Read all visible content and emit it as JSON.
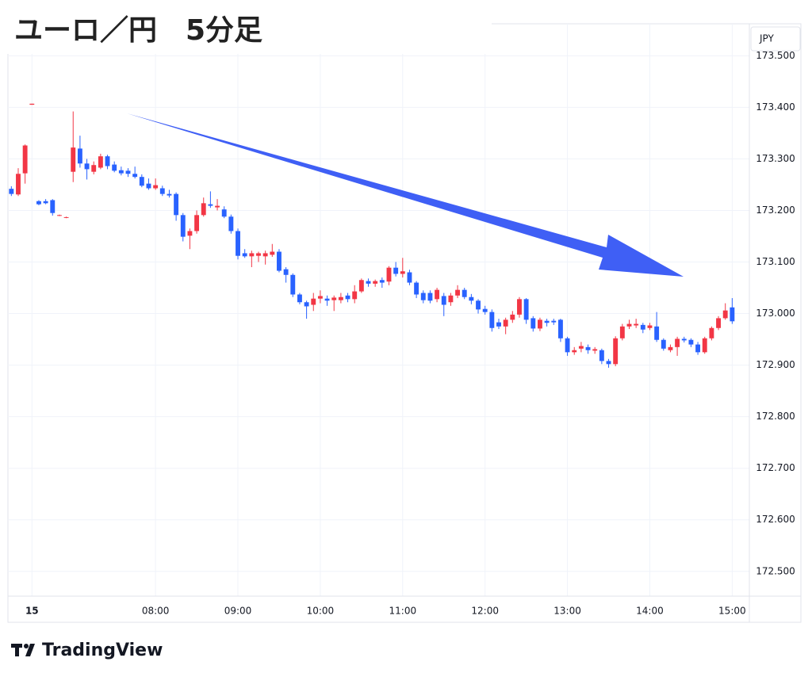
{
  "chart_data": {
    "type": "candlestick",
    "title": "ユーロ／円　5分足",
    "currency": "JPY",
    "watermark": "TradingView",
    "up_color": "#f23645",
    "down_color": "#2962ff",
    "grid": true,
    "ylim": [
      172.452,
      173.562
    ],
    "yticks": [
      {
        "value": 173.5,
        "label": "173.500"
      },
      {
        "value": 173.4,
        "label": "173.400"
      },
      {
        "value": 173.3,
        "label": "173.300"
      },
      {
        "value": 173.2,
        "label": "173.200"
      },
      {
        "value": 173.1,
        "label": "173.100"
      },
      {
        "value": 173.0,
        "label": "173.000"
      },
      {
        "value": 172.9,
        "label": "172.900"
      },
      {
        "value": 172.8,
        "label": "172.800"
      },
      {
        "value": 172.7,
        "label": "172.700"
      },
      {
        "value": 172.6,
        "label": "172.600"
      },
      {
        "value": 172.5,
        "label": "172.500"
      }
    ],
    "xlim": [
      -0.5,
      107.5
    ],
    "xticks": [
      {
        "value": 3,
        "label": "15"
      },
      {
        "value": 21,
        "label": "08:00"
      },
      {
        "value": 33,
        "label": "09:00"
      },
      {
        "value": 45,
        "label": "10:00"
      },
      {
        "value": 57,
        "label": "11:00"
      },
      {
        "value": 69,
        "label": "12:00"
      },
      {
        "value": 81,
        "label": "13:00"
      },
      {
        "value": 93,
        "label": "14:00"
      },
      {
        "value": 105,
        "label": "15:00"
      }
    ],
    "ohlc": [
      [
        173.242,
        173.247,
        173.228,
        173.232
      ],
      [
        173.231,
        173.282,
        173.228,
        173.271
      ],
      [
        173.272,
        173.328,
        173.252,
        173.326
      ],
      [
        173.405,
        173.407,
        173.405,
        173.407
      ],
      [
        173.218,
        173.22,
        173.21,
        173.212
      ],
      [
        173.218,
        173.222,
        173.212,
        173.214
      ],
      [
        173.22,
        173.222,
        173.19,
        173.195
      ],
      [
        173.19,
        173.192,
        173.189,
        173.191
      ],
      [
        173.186,
        173.188,
        173.185,
        173.187
      ],
      [
        173.275,
        173.392,
        173.255,
        173.322
      ],
      [
        173.32,
        173.345,
        173.283,
        173.291
      ],
      [
        173.291,
        173.3,
        173.26,
        173.28
      ],
      [
        173.275,
        173.295,
        173.27,
        173.288
      ],
      [
        173.283,
        173.31,
        173.28,
        173.305
      ],
      [
        173.305,
        173.308,
        173.28,
        173.286
      ],
      [
        173.289,
        173.295,
        173.274,
        173.277
      ],
      [
        173.278,
        173.285,
        173.268,
        173.272
      ],
      [
        173.277,
        173.282,
        173.265,
        173.271
      ],
      [
        173.271,
        173.285,
        173.262,
        173.265
      ],
      [
        173.265,
        173.27,
        173.245,
        173.248
      ],
      [
        173.252,
        173.262,
        173.24,
        173.243
      ],
      [
        173.243,
        173.262,
        173.24,
        173.249
      ],
      [
        173.243,
        173.248,
        173.228,
        173.232
      ],
      [
        173.232,
        173.24,
        173.225,
        173.229
      ],
      [
        173.232,
        173.235,
        173.18,
        173.191
      ],
      [
        173.191,
        173.195,
        173.14,
        173.149
      ],
      [
        173.151,
        173.165,
        173.125,
        173.16
      ],
      [
        173.16,
        173.2,
        173.155,
        173.191
      ],
      [
        173.191,
        173.225,
        173.188,
        173.214
      ],
      [
        173.212,
        173.237,
        173.205,
        173.209
      ],
      [
        173.206,
        173.222,
        173.2,
        173.209
      ],
      [
        173.202,
        173.208,
        173.185,
        173.188
      ],
      [
        173.188,
        173.192,
        173.155,
        173.16
      ],
      [
        173.16,
        173.165,
        173.105,
        173.112
      ],
      [
        173.117,
        173.125,
        173.108,
        173.111
      ],
      [
        173.111,
        173.122,
        173.09,
        173.117
      ],
      [
        173.112,
        173.12,
        173.1,
        173.117
      ],
      [
        173.111,
        173.122,
        173.095,
        173.117
      ],
      [
        173.114,
        173.135,
        173.11,
        173.12
      ],
      [
        173.12,
        173.125,
        173.08,
        173.083
      ],
      [
        173.086,
        173.09,
        173.06,
        173.075
      ],
      [
        173.075,
        173.078,
        173.032,
        173.037
      ],
      [
        173.037,
        173.04,
        173.018,
        173.022
      ],
      [
        173.022,
        173.025,
        172.99,
        173.014
      ],
      [
        173.017,
        173.04,
        173.005,
        173.029
      ],
      [
        173.029,
        173.045,
        173.02,
        173.034
      ],
      [
        173.029,
        173.035,
        173.015,
        173.025
      ],
      [
        173.026,
        173.035,
        173.005,
        173.031
      ],
      [
        173.026,
        173.04,
        173.02,
        173.032
      ],
      [
        173.035,
        173.04,
        173.022,
        173.028
      ],
      [
        173.028,
        173.055,
        173.02,
        173.043
      ],
      [
        173.043,
        173.068,
        173.04,
        173.065
      ],
      [
        173.063,
        173.068,
        173.052,
        173.058
      ],
      [
        173.058,
        173.066,
        173.052,
        173.063
      ],
      [
        173.065,
        173.07,
        173.05,
        173.06
      ],
      [
        173.062,
        173.092,
        173.055,
        173.089
      ],
      [
        173.089,
        173.1,
        173.072,
        173.077
      ],
      [
        173.077,
        173.108,
        173.07,
        173.082
      ],
      [
        173.08,
        173.085,
        173.055,
        173.06
      ],
      [
        173.06,
        173.063,
        173.03,
        173.037
      ],
      [
        173.04,
        173.045,
        173.02,
        173.026
      ],
      [
        173.04,
        173.045,
        173.02,
        173.025
      ],
      [
        173.028,
        173.05,
        173.022,
        173.046
      ],
      [
        173.034,
        173.04,
        172.995,
        173.017
      ],
      [
        173.022,
        173.04,
        173.015,
        173.035
      ],
      [
        173.035,
        173.055,
        173.03,
        173.046
      ],
      [
        173.046,
        173.05,
        173.028,
        173.032
      ],
      [
        173.032,
        173.038,
        173.018,
        173.025
      ],
      [
        173.025,
        173.028,
        173.0,
        173.008
      ],
      [
        173.009,
        173.015,
        172.998,
        173.003
      ],
      [
        173.003,
        173.008,
        172.965,
        172.972
      ],
      [
        172.983,
        172.99,
        172.97,
        172.975
      ],
      [
        172.975,
        172.992,
        172.96,
        172.988
      ],
      [
        172.988,
        173.005,
        172.982,
        172.998
      ],
      [
        172.998,
        173.032,
        172.992,
        173.028
      ],
      [
        173.028,
        173.03,
        172.98,
        172.988
      ],
      [
        172.991,
        172.995,
        172.965,
        172.971
      ],
      [
        172.971,
        172.992,
        172.966,
        172.988
      ],
      [
        172.986,
        172.99,
        172.975,
        172.982
      ],
      [
        172.986,
        172.99,
        172.978,
        172.983
      ],
      [
        172.988,
        172.99,
        172.945,
        172.952
      ],
      [
        172.952,
        172.955,
        172.918,
        172.925
      ],
      [
        172.925,
        172.935,
        172.92,
        172.929
      ],
      [
        172.932,
        172.945,
        172.925,
        172.937
      ],
      [
        172.935,
        172.94,
        172.922,
        172.929
      ],
      [
        172.928,
        172.935,
        172.922,
        172.931
      ],
      [
        172.929,
        172.932,
        172.902,
        172.908
      ],
      [
        172.908,
        172.912,
        172.895,
        172.902
      ],
      [
        172.902,
        172.956,
        172.898,
        172.952
      ],
      [
        172.952,
        172.98,
        172.948,
        172.975
      ],
      [
        172.975,
        172.988,
        172.97,
        172.98
      ],
      [
        172.977,
        172.99,
        172.972,
        172.98
      ],
      [
        172.978,
        172.982,
        172.962,
        172.969
      ],
      [
        172.972,
        172.982,
        172.968,
        172.977
      ],
      [
        172.975,
        173.003,
        172.945,
        172.949
      ],
      [
        172.949,
        172.952,
        172.928,
        172.932
      ],
      [
        172.929,
        172.94,
        172.925,
        172.935
      ],
      [
        172.935,
        172.955,
        172.918,
        172.951
      ],
      [
        172.951,
        172.955,
        172.944,
        172.948
      ],
      [
        172.949,
        172.952,
        172.935,
        172.94
      ],
      [
        172.94,
        172.945,
        172.92,
        172.925
      ],
      [
        172.925,
        172.955,
        172.922,
        172.952
      ],
      [
        172.952,
        172.975,
        172.948,
        172.972
      ],
      [
        172.972,
        172.995,
        172.968,
        172.991
      ],
      [
        172.991,
        173.02,
        172.988,
        173.006
      ],
      [
        173.012,
        173.03,
        172.98,
        172.985
      ]
    ]
  }
}
